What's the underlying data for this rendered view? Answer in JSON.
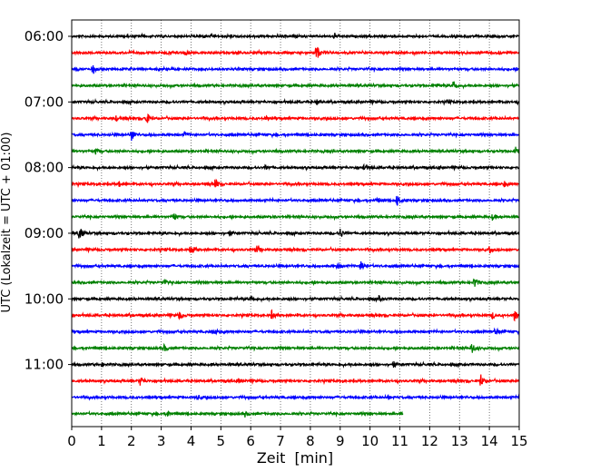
{
  "chart_data": {
    "type": "line",
    "title": "",
    "xlabel": "Zeit  [min]",
    "ylabel": "UTC (Lokalzeit = UTC + 01:00)",
    "xlim": [
      0,
      15
    ],
    "x_ticks": [
      0,
      1,
      2,
      3,
      4,
      5,
      6,
      7,
      8,
      9,
      10,
      11,
      12,
      13,
      14,
      15
    ],
    "y_tick_labels": [
      "06:00",
      "07:00",
      "08:00",
      "09:00",
      "10:00",
      "11:00"
    ],
    "grid": "vertical dotted",
    "trace_colors": [
      "#000000",
      "#ff0000",
      "#0000ff",
      "#008000"
    ],
    "series": [
      {
        "start": "06:00",
        "duration_min": 15,
        "events": [
          {
            "x": 8.8,
            "amp": 0.25
          }
        ]
      },
      {
        "start": "06:15",
        "duration_min": 15,
        "events": [
          {
            "x": 3.8,
            "amp": 0.3
          },
          {
            "x": 8.2,
            "amp": 1.0
          }
        ]
      },
      {
        "start": "06:30",
        "duration_min": 15,
        "events": [
          {
            "x": 0.7,
            "amp": 0.5
          }
        ]
      },
      {
        "start": "06:45",
        "duration_min": 15,
        "events": [
          {
            "x": 12.2,
            "amp": 0.3
          },
          {
            "x": 12.8,
            "amp": 0.8
          }
        ]
      },
      {
        "start": "07:00",
        "duration_min": 15,
        "events": [
          {
            "x": 8.2,
            "amp": 0.3
          },
          {
            "x": 12.6,
            "amp": 0.25
          }
        ]
      },
      {
        "start": "07:15",
        "duration_min": 15,
        "events": [
          {
            "x": 1.5,
            "amp": 0.3
          },
          {
            "x": 2.5,
            "amp": 0.75
          },
          {
            "x": 6.5,
            "amp": 0.3
          }
        ]
      },
      {
        "start": "07:30",
        "duration_min": 15,
        "events": [
          {
            "x": 2.0,
            "amp": 0.8
          },
          {
            "x": 3.8,
            "amp": 0.3
          }
        ]
      },
      {
        "start": "07:45",
        "duration_min": 15,
        "events": [
          {
            "x": 0.8,
            "amp": 0.35
          },
          {
            "x": 14.9,
            "amp": 0.8
          }
        ]
      },
      {
        "start": "08:00",
        "duration_min": 15,
        "events": [
          {
            "x": 9.8,
            "amp": 0.5
          },
          {
            "x": 6.5,
            "amp": 0.25
          }
        ]
      },
      {
        "start": "08:15",
        "duration_min": 15,
        "events": [
          {
            "x": 4.8,
            "amp": 0.7
          },
          {
            "x": 1.6,
            "amp": 0.3
          },
          {
            "x": 14.5,
            "amp": 0.35
          }
        ]
      },
      {
        "start": "08:30",
        "duration_min": 15,
        "events": [
          {
            "x": 10.9,
            "amp": 0.75
          },
          {
            "x": 10.2,
            "amp": 0.3
          }
        ]
      },
      {
        "start": "08:45",
        "duration_min": 15,
        "events": [
          {
            "x": 3.4,
            "amp": 0.5
          },
          {
            "x": 14.1,
            "amp": 0.35
          }
        ]
      },
      {
        "start": "09:00",
        "duration_min": 15,
        "events": [
          {
            "x": 0.25,
            "amp": 0.9
          },
          {
            "x": 9.0,
            "amp": 0.55
          },
          {
            "x": 5.3,
            "amp": 0.3
          }
        ]
      },
      {
        "start": "09:15",
        "duration_min": 15,
        "events": [
          {
            "x": 4.0,
            "amp": 0.75
          },
          {
            "x": 6.2,
            "amp": 0.45
          },
          {
            "x": 14.0,
            "amp": 0.35
          }
        ]
      },
      {
        "start": "09:30",
        "duration_min": 15,
        "events": [
          {
            "x": 9.7,
            "amp": 0.7
          },
          {
            "x": 8.9,
            "amp": 0.35
          }
        ]
      },
      {
        "start": "09:45",
        "duration_min": 15,
        "events": [
          {
            "x": 13.5,
            "amp": 0.7
          },
          {
            "x": 3.1,
            "amp": 0.3
          }
        ]
      },
      {
        "start": "10:00",
        "duration_min": 15,
        "events": [
          {
            "x": 6.0,
            "amp": 0.35
          },
          {
            "x": 10.3,
            "amp": 0.3
          }
        ]
      },
      {
        "start": "10:15",
        "duration_min": 15,
        "events": [
          {
            "x": 3.6,
            "amp": 0.55
          },
          {
            "x": 6.7,
            "amp": 0.5
          },
          {
            "x": 14.85,
            "amp": 0.75
          },
          {
            "x": 14.1,
            "amp": 0.4
          }
        ]
      },
      {
        "start": "10:30",
        "duration_min": 15,
        "events": [
          {
            "x": 14.2,
            "amp": 0.45
          },
          {
            "x": 4.8,
            "amp": 0.3
          }
        ]
      },
      {
        "start": "10:45",
        "duration_min": 15,
        "events": [
          {
            "x": 13.4,
            "amp": 0.7
          },
          {
            "x": 3.1,
            "amp": 0.4
          }
        ]
      },
      {
        "start": "11:00",
        "duration_min": 15,
        "events": [
          {
            "x": 10.8,
            "amp": 0.35
          },
          {
            "x": 1.0,
            "amp": 0.2
          }
        ]
      },
      {
        "start": "11:15",
        "duration_min": 15,
        "events": [
          {
            "x": 2.3,
            "amp": 0.55
          },
          {
            "x": 13.7,
            "amp": 0.75
          },
          {
            "x": 5.6,
            "amp": 0.3
          }
        ]
      },
      {
        "start": "11:30",
        "duration_min": 15,
        "events": [
          {
            "x": 4.2,
            "amp": 0.25
          },
          {
            "x": 10.6,
            "amp": 0.25
          }
        ]
      },
      {
        "start": "11:45",
        "duration_min": 11.1,
        "events": [
          {
            "x": 3.2,
            "amp": 0.4
          },
          {
            "x": 5.8,
            "amp": 0.25
          }
        ]
      }
    ]
  }
}
